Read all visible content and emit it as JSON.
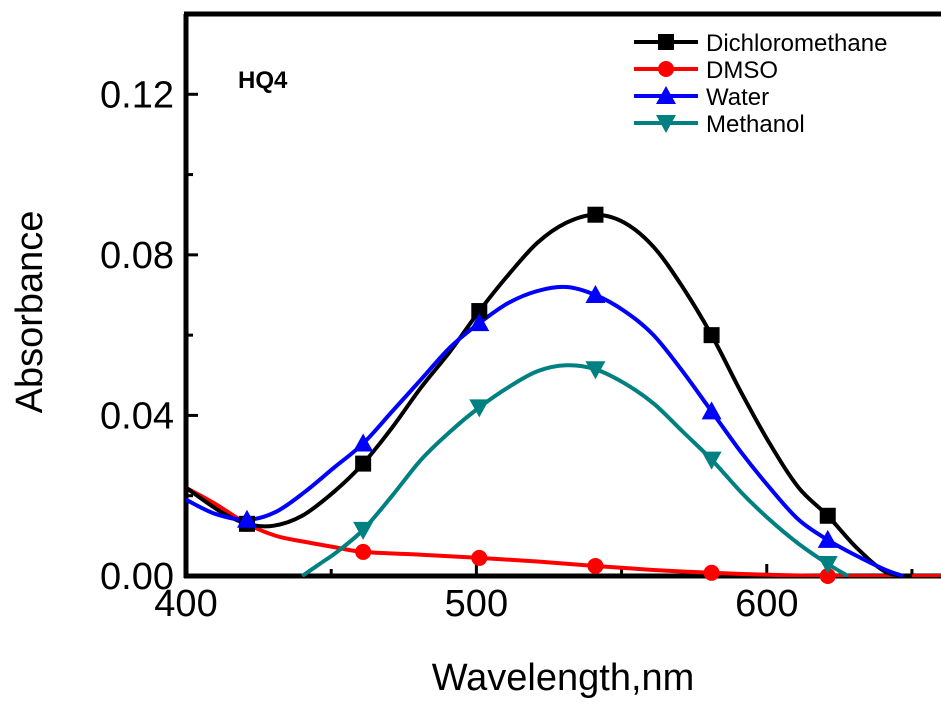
{
  "chart_data": {
    "type": "line",
    "title": "",
    "annotation": "HQ4",
    "xlabel": "Wavelength,nm",
    "ylabel": "Absorbance",
    "xlim": [
      400,
      660
    ],
    "ylim": [
      0,
      0.14
    ],
    "x_ticks": [
      400,
      500,
      600
    ],
    "y_ticks": [
      0.0,
      0.04,
      0.08,
      0.12
    ],
    "x_tick_labels": [
      "400",
      "500",
      "600"
    ],
    "y_tick_labels": [
      "0.00",
      "0.04",
      "0.08",
      "0.12"
    ],
    "grid": false,
    "legend_position": "top-right",
    "series": [
      {
        "name": "Dichloromethane",
        "color": "#000000",
        "marker": "square",
        "markers": [
          [
            421,
            0.013
          ],
          [
            461,
            0.028
          ],
          [
            501,
            0.066
          ],
          [
            541,
            0.09
          ],
          [
            581,
            0.06
          ],
          [
            621,
            0.015
          ]
        ],
        "curve": [
          [
            400,
            0.022
          ],
          [
            412,
            0.016
          ],
          [
            421,
            0.013
          ],
          [
            430,
            0.0125
          ],
          [
            440,
            0.015
          ],
          [
            451,
            0.021
          ],
          [
            461,
            0.028
          ],
          [
            471,
            0.037
          ],
          [
            481,
            0.047
          ],
          [
            491,
            0.056
          ],
          [
            501,
            0.066
          ],
          [
            511,
            0.075
          ],
          [
            521,
            0.083
          ],
          [
            531,
            0.088
          ],
          [
            541,
            0.09
          ],
          [
            551,
            0.088
          ],
          [
            561,
            0.082
          ],
          [
            571,
            0.072
          ],
          [
            581,
            0.06
          ],
          [
            591,
            0.046
          ],
          [
            601,
            0.033
          ],
          [
            611,
            0.022
          ],
          [
            621,
            0.015
          ],
          [
            631,
            0.007
          ],
          [
            641,
            0.001
          ],
          [
            650,
            0.0
          ]
        ]
      },
      {
        "name": "DMSO",
        "color": "#ff0000",
        "marker": "circle",
        "markers": [
          [
            421,
            0.013
          ],
          [
            461,
            0.006
          ],
          [
            501,
            0.0045
          ],
          [
            541,
            0.0025
          ],
          [
            581,
            0.0008
          ],
          [
            621,
            0.0
          ]
        ],
        "curve": [
          [
            400,
            0.022
          ],
          [
            410,
            0.018
          ],
          [
            421,
            0.013
          ],
          [
            431,
            0.01
          ],
          [
            441,
            0.0085
          ],
          [
            451,
            0.0072
          ],
          [
            461,
            0.006
          ],
          [
            481,
            0.0053
          ],
          [
            501,
            0.0045
          ],
          [
            521,
            0.0036
          ],
          [
            541,
            0.0025
          ],
          [
            561,
            0.0015
          ],
          [
            581,
            0.0008
          ],
          [
            601,
            0.0003
          ],
          [
            621,
            0.0
          ],
          [
            660,
            0.0
          ]
        ]
      },
      {
        "name": "Water",
        "color": "#0000ff",
        "marker": "triangle-up",
        "markers": [
          [
            421,
            0.014
          ],
          [
            461,
            0.033
          ],
          [
            501,
            0.063
          ],
          [
            541,
            0.07
          ],
          [
            581,
            0.041
          ],
          [
            621,
            0.009
          ]
        ],
        "curve": [
          [
            400,
            0.019
          ],
          [
            410,
            0.0155
          ],
          [
            421,
            0.014
          ],
          [
            431,
            0.016
          ],
          [
            441,
            0.021
          ],
          [
            451,
            0.027
          ],
          [
            461,
            0.033
          ],
          [
            471,
            0.041
          ],
          [
            481,
            0.049
          ],
          [
            491,
            0.057
          ],
          [
            501,
            0.063
          ],
          [
            511,
            0.068
          ],
          [
            521,
            0.071
          ],
          [
            531,
            0.072
          ],
          [
            541,
            0.07
          ],
          [
            551,
            0.066
          ],
          [
            561,
            0.06
          ],
          [
            571,
            0.051
          ],
          [
            581,
            0.041
          ],
          [
            591,
            0.031
          ],
          [
            601,
            0.022
          ],
          [
            611,
            0.014
          ],
          [
            621,
            0.009
          ],
          [
            631,
            0.005
          ],
          [
            641,
            0.0015
          ],
          [
            647,
            0.0
          ]
        ]
      },
      {
        "name": "Methanol",
        "color": "#008080",
        "marker": "triangle-down",
        "markers": [
          [
            461,
            0.0115
          ],
          [
            501,
            0.042
          ],
          [
            541,
            0.0515
          ],
          [
            581,
            0.029
          ],
          [
            621,
            0.003
          ]
        ],
        "curve": [
          [
            440,
            0.0
          ],
          [
            446,
            0.003
          ],
          [
            452,
            0.006
          ],
          [
            461,
            0.0115
          ],
          [
            471,
            0.02
          ],
          [
            481,
            0.029
          ],
          [
            491,
            0.036
          ],
          [
            501,
            0.042
          ],
          [
            511,
            0.047
          ],
          [
            521,
            0.051
          ],
          [
            531,
            0.0525
          ],
          [
            541,
            0.0515
          ],
          [
            551,
            0.048
          ],
          [
            561,
            0.043
          ],
          [
            571,
            0.036
          ],
          [
            581,
            0.029
          ],
          [
            591,
            0.021
          ],
          [
            601,
            0.014
          ],
          [
            611,
            0.008
          ],
          [
            621,
            0.003
          ],
          [
            628,
            0.0
          ]
        ]
      }
    ]
  }
}
